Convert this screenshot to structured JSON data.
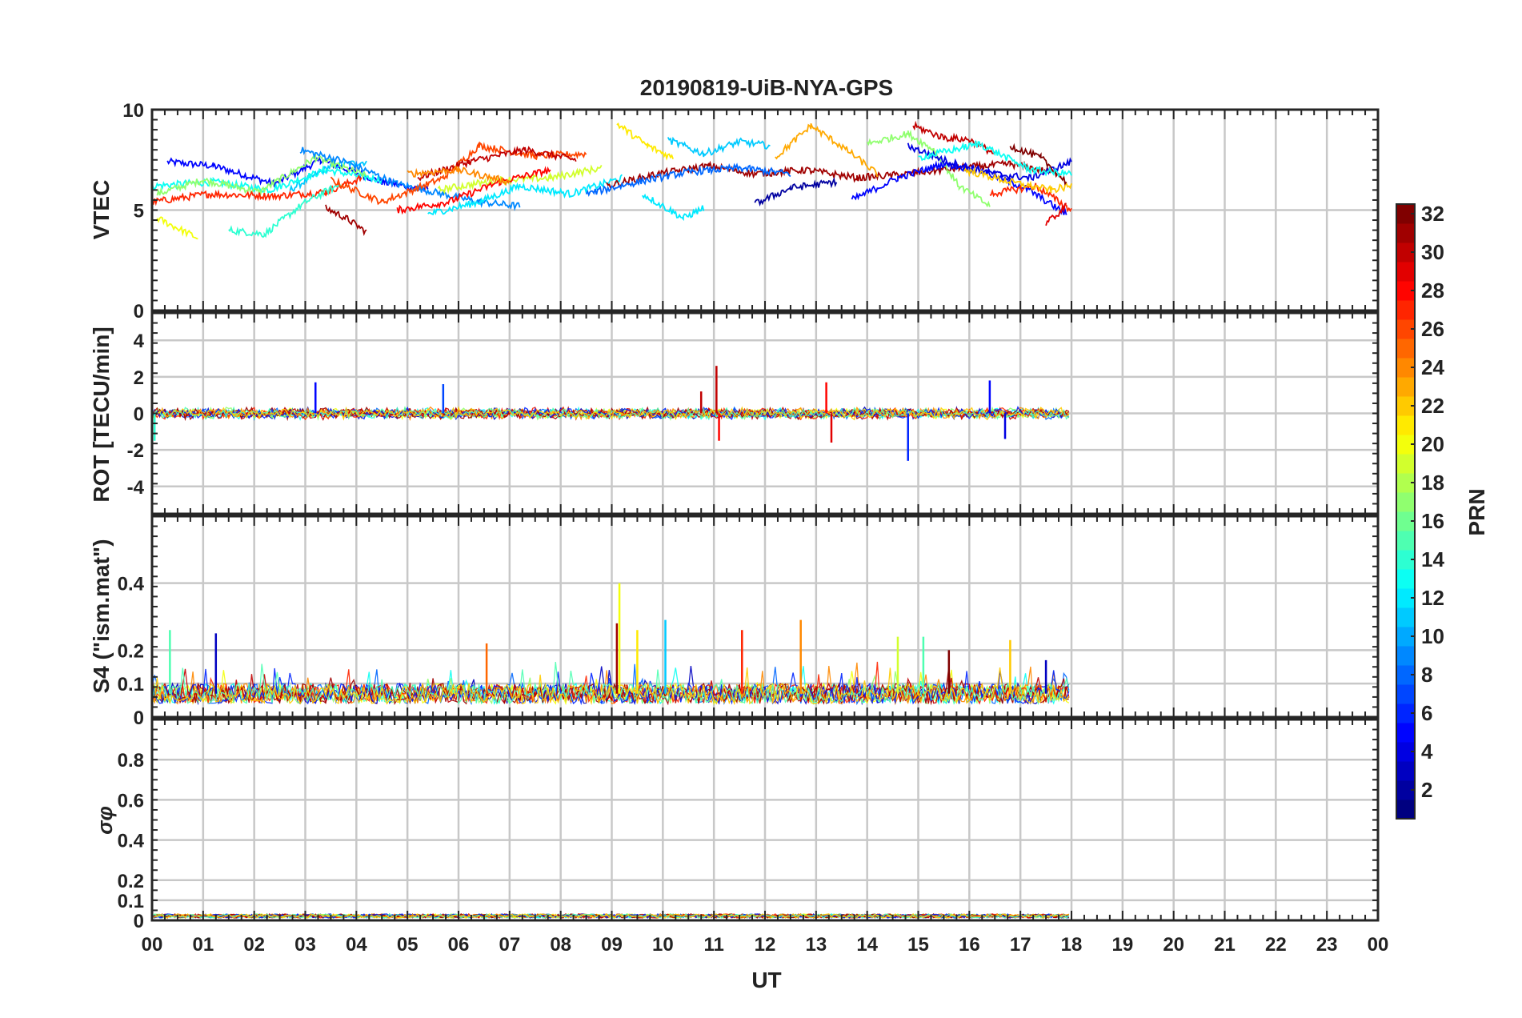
{
  "figure_title": "20190819-UiB-NYA-GPS",
  "colors": {
    "grid": "#c8c8c8",
    "axis": "#262626",
    "background": "#ffffff"
  },
  "chart_data": [
    {
      "type": "line",
      "panel": "vtec",
      "title": "20190819-UiB-NYA-GPS",
      "ylabel": "VTEC",
      "ylim": [
        0,
        10
      ],
      "yticks": [
        "0",
        "5",
        "10"
      ],
      "ytick_values": [
        0,
        5,
        10
      ],
      "grid": true,
      "color_by": "PRN",
      "series": [
        {
          "prn": 5,
          "x": [
            0.3,
            1.2,
            2.4,
            3.3,
            4.5,
            5.4
          ],
          "y": [
            7.4,
            7.2,
            6.3,
            7.5,
            6.4,
            6.0
          ]
        },
        {
          "prn": 11,
          "x": [
            2.7,
            3.5,
            4.2
          ],
          "y": [
            6.0,
            7.2,
            7.4
          ]
        },
        {
          "prn": 13,
          "x": [
            0.0,
            1.2,
            2.3,
            3.4,
            4.5
          ],
          "y": [
            6.2,
            6.4,
            6.0,
            7.0,
            6.5
          ]
        },
        {
          "prn": 17,
          "x": [
            0.1,
            1.0,
            2.1,
            3.2,
            4.2
          ],
          "y": [
            5.8,
            6.5,
            5.9,
            7.6,
            6.7
          ]
        },
        {
          "prn": 20,
          "x": [
            0.1,
            0.9
          ],
          "y": [
            4.6,
            3.6
          ]
        },
        {
          "prn": 27,
          "x": [
            0.0,
            1.1,
            2.4,
            3.4,
            4.1
          ],
          "y": [
            5.4,
            5.8,
            5.7,
            5.9,
            6.6
          ]
        },
        {
          "prn": 31,
          "x": [
            3.4,
            3.8,
            4.2
          ],
          "y": [
            5.1,
            4.6,
            3.9
          ]
        },
        {
          "prn": 14,
          "x": [
            1.5,
            2.2,
            3.0,
            3.7
          ],
          "y": [
            4.0,
            3.8,
            5.4,
            6.3
          ]
        },
        {
          "prn": 9,
          "x": [
            2.9,
            3.8,
            4.8,
            5.7,
            6.4,
            7.2
          ],
          "y": [
            8.0,
            7.4,
            6.3,
            5.8,
            5.4,
            5.2
          ]
        },
        {
          "prn": 26,
          "x": [
            3.5,
            4.5,
            5.7,
            6.4,
            7.5,
            8.5
          ],
          "y": [
            6.5,
            5.4,
            6.6,
            8.2,
            7.7,
            7.8
          ]
        },
        {
          "prn": 30,
          "x": [
            5.2,
            6.2,
            7.3,
            8.3
          ],
          "y": [
            6.6,
            7.4,
            8.0,
            7.5
          ]
        },
        {
          "prn": 12,
          "x": [
            5.4,
            6.4,
            7.2,
            8.2,
            9.2
          ],
          "y": [
            4.8,
            5.4,
            6.2,
            5.8,
            6.6
          ]
        },
        {
          "prn": 19,
          "x": [
            5.6,
            6.8,
            7.8,
            8.8
          ],
          "y": [
            6.0,
            6.5,
            6.6,
            7.1
          ]
        },
        {
          "prn": 28,
          "x": [
            4.8,
            5.8,
            6.8,
            7.8
          ],
          "y": [
            5.0,
            5.4,
            6.4,
            7.0
          ]
        },
        {
          "prn": 24,
          "x": [
            5.0,
            6.0,
            7.0
          ],
          "y": [
            6.8,
            7.0,
            6.4
          ]
        },
        {
          "prn": 21,
          "x": [
            9.1,
            9.7,
            10.2
          ],
          "y": [
            9.3,
            8.2,
            7.6
          ]
        },
        {
          "prn": 12,
          "x": [
            9.6,
            10.4,
            10.8
          ],
          "y": [
            5.8,
            4.6,
            5.1
          ]
        },
        {
          "prn": 11,
          "x": [
            10.1,
            10.8,
            11.5,
            12.1
          ],
          "y": [
            8.5,
            7.8,
            8.4,
            8.2
          ]
        },
        {
          "prn": 31,
          "x": [
            8.9,
            9.9,
            10.9,
            11.8,
            12.8,
            13.8,
            14.8,
            15.8,
            16.8,
            17.8
          ],
          "y": [
            6.2,
            6.8,
            7.2,
            6.8,
            7.0,
            6.6,
            6.8,
            7.1,
            7.3,
            6.8
          ]
        },
        {
          "prn": 23,
          "x": [
            12.2,
            12.9,
            13.6,
            14.2
          ],
          "y": [
            7.6,
            9.2,
            8.0,
            6.8
          ]
        },
        {
          "prn": 2,
          "x": [
            11.8,
            12.5,
            13.4
          ],
          "y": [
            5.3,
            6.1,
            6.4
          ]
        },
        {
          "prn": 8,
          "x": [
            8.5,
            9.5,
            10.5,
            11.5,
            12.5
          ],
          "y": [
            5.8,
            6.4,
            6.9,
            7.1,
            6.8
          ]
        },
        {
          "prn": 17,
          "x": [
            14.0,
            14.8,
            15.3,
            15.8,
            16.4
          ],
          "y": [
            8.3,
            8.8,
            8.0,
            6.2,
            5.2
          ]
        },
        {
          "prn": 30,
          "x": [
            14.9,
            15.5,
            16.0,
            16.5
          ],
          "y": [
            9.2,
            8.6,
            8.5,
            7.8
          ]
        },
        {
          "prn": 5,
          "x": [
            13.7,
            14.6,
            15.5,
            16.3,
            17.1,
            17.9
          ],
          "y": [
            5.5,
            6.6,
            7.3,
            6.9,
            6.1,
            4.8
          ]
        },
        {
          "prn": 4,
          "x": [
            14.8,
            15.6,
            16.5,
            17.2,
            18.0
          ],
          "y": [
            8.2,
            7.4,
            6.8,
            6.6,
            7.4
          ]
        },
        {
          "prn": 27,
          "x": [
            16.4,
            17.3,
            18.0
          ],
          "y": [
            5.8,
            6.2,
            5.0
          ]
        },
        {
          "prn": 22,
          "x": [
            15.9,
            16.8,
            17.6,
            18.0
          ],
          "y": [
            7.0,
            6.4,
            6.0,
            6.2
          ]
        },
        {
          "prn": 32,
          "x": [
            16.8,
            17.4,
            17.9
          ],
          "y": [
            8.2,
            7.6,
            6.4
          ]
        },
        {
          "prn": 29,
          "x": [
            17.5,
            17.9
          ],
          "y": [
            4.3,
            5.2
          ]
        },
        {
          "prn": 13,
          "x": [
            15.0,
            16.2,
            17.2,
            18.0
          ],
          "y": [
            7.6,
            8.3,
            7.0,
            6.8
          ]
        }
      ]
    },
    {
      "type": "line",
      "panel": "rot",
      "ylabel": "ROT [TECU/min]",
      "ylim": [
        -5.5,
        5.5
      ],
      "yticks": [
        "-4",
        "-2",
        "0",
        "2",
        "4"
      ],
      "ytick_values": [
        -4,
        -2,
        0,
        2,
        4
      ],
      "grid": true,
      "x_range": [
        0,
        18
      ],
      "base_amplitude": 0.25,
      "spikes": [
        {
          "x": 0.05,
          "y": -1.5,
          "prn": 14
        },
        {
          "x": 3.2,
          "y": 1.7,
          "prn": 5
        },
        {
          "x": 5.7,
          "y": 1.6,
          "prn": 7
        },
        {
          "x": 10.75,
          "y": 1.2,
          "prn": 30
        },
        {
          "x": 11.05,
          "y": 2.6,
          "prn": 30
        },
        {
          "x": 11.1,
          "y": -1.5,
          "prn": 28
        },
        {
          "x": 13.2,
          "y": 1.7,
          "prn": 28
        },
        {
          "x": 13.3,
          "y": -1.6,
          "prn": 29
        },
        {
          "x": 14.8,
          "y": -2.6,
          "prn": 6
        },
        {
          "x": 16.4,
          "y": 1.8,
          "prn": 5
        },
        {
          "x": 16.7,
          "y": -1.4,
          "prn": 4
        }
      ]
    },
    {
      "type": "line",
      "panel": "s4",
      "ylabel": "S4 (\"ism.mat\")",
      "ylim": [
        0,
        0.6
      ],
      "yticks": [
        "0",
        "0.1",
        "0.2",
        "0.4"
      ],
      "ytick_values": [
        0,
        0.1,
        0.2,
        0.4
      ],
      "grid": true,
      "x_range": [
        0,
        18
      ],
      "baseline": 0.07,
      "spikes": [
        {
          "x": 0.35,
          "y": 0.26,
          "prn": 15
        },
        {
          "x": 1.25,
          "y": 0.25,
          "prn": 3
        },
        {
          "x": 6.55,
          "y": 0.22,
          "prn": 25
        },
        {
          "x": 9.15,
          "y": 0.4,
          "prn": 20
        },
        {
          "x": 9.1,
          "y": 0.28,
          "prn": 31
        },
        {
          "x": 9.5,
          "y": 0.26,
          "prn": 21
        },
        {
          "x": 10.05,
          "y": 0.29,
          "prn": 11
        },
        {
          "x": 11.55,
          "y": 0.26,
          "prn": 27
        },
        {
          "x": 12.7,
          "y": 0.29,
          "prn": 24
        },
        {
          "x": 14.6,
          "y": 0.24,
          "prn": 19
        },
        {
          "x": 15.1,
          "y": 0.24,
          "prn": 15
        },
        {
          "x": 15.6,
          "y": 0.2,
          "prn": 32
        },
        {
          "x": 16.8,
          "y": 0.23,
          "prn": 22
        },
        {
          "x": 17.5,
          "y": 0.17,
          "prn": 3
        }
      ]
    },
    {
      "type": "line",
      "panel": "sigma_phi",
      "ylabel": "σφ",
      "ylim": [
        0,
        1
      ],
      "yticks": [
        "0",
        "0.1",
        "0.2",
        "0.4",
        "0.6",
        "0.8"
      ],
      "ytick_values": [
        0,
        0.1,
        0.2,
        0.4,
        0.6,
        0.8
      ],
      "grid": true,
      "x_range": [
        0,
        18
      ],
      "baseline": 0.02
    }
  ],
  "x_axis": {
    "xlabel": "UT",
    "xlim": [
      0,
      24
    ],
    "ticks": [
      "00",
      "01",
      "02",
      "03",
      "04",
      "05",
      "06",
      "07",
      "08",
      "09",
      "10",
      "11",
      "12",
      "13",
      "14",
      "15",
      "16",
      "17",
      "18",
      "19",
      "20",
      "21",
      "22",
      "23",
      "00"
    ]
  },
  "colorbar": {
    "label": "PRN",
    "range": [
      1,
      32
    ],
    "ticks": [
      "2",
      "4",
      "6",
      "8",
      "10",
      "12",
      "14",
      "16",
      "18",
      "20",
      "22",
      "24",
      "26",
      "28",
      "30",
      "32"
    ],
    "tick_values": [
      2,
      4,
      6,
      8,
      10,
      12,
      14,
      16,
      18,
      20,
      22,
      24,
      26,
      28,
      30,
      32
    ],
    "colormap": "jet"
  }
}
